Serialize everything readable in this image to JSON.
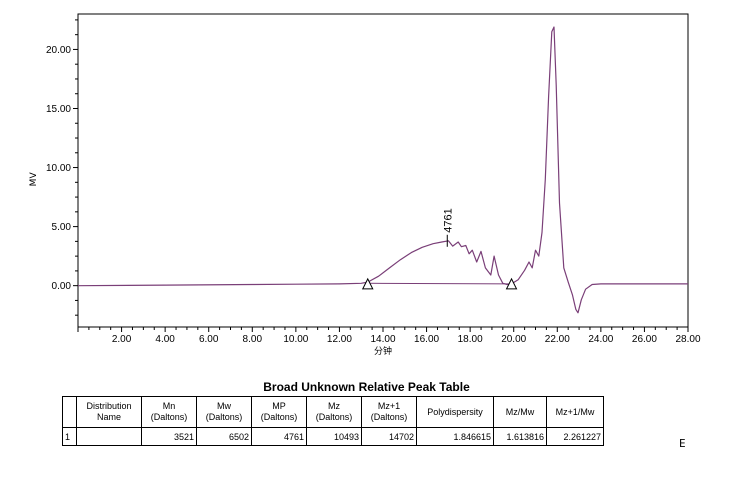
{
  "chart_data": {
    "type": "line",
    "title": "",
    "xlabel": "分钟",
    "ylabel": "MV",
    "xlim": [
      0,
      28
    ],
    "ylim": [
      -3.5,
      23
    ],
    "x_ticks": [
      2,
      4,
      6,
      8,
      10,
      12,
      14,
      16,
      18,
      20,
      22,
      24,
      26,
      28
    ],
    "x_tick_labels": [
      "2.00",
      "4.00",
      "6.00",
      "8.00",
      "10.00",
      "12.00",
      "14.00",
      "16.00",
      "18.00",
      "20.00",
      "22.00",
      "24.00",
      "26.00",
      "28.00"
    ],
    "y_ticks": [
      0,
      5,
      10,
      15,
      20
    ],
    "y_tick_labels": [
      "0.00",
      "5.00",
      "10.00",
      "15.00",
      "20.00"
    ],
    "grid": false,
    "series": [
      {
        "color": "#7a3f78",
        "x": [
          0,
          4,
          8,
          10,
          12,
          13,
          13.3,
          13.8,
          14.3,
          14.8,
          15.3,
          15.8,
          16.3,
          16.7,
          17.0,
          17.2,
          17.45,
          17.6,
          17.8,
          17.95,
          18.1,
          18.3,
          18.5,
          18.7,
          18.95,
          19.1,
          19.3,
          19.5,
          19.7,
          19.9,
          20.2,
          20.5,
          20.7,
          20.85,
          21.0,
          21.15,
          21.3,
          21.45,
          21.6,
          21.75,
          21.85,
          21.95,
          22.1,
          22.3,
          22.5,
          22.7,
          22.85,
          22.95,
          23.1,
          23.3,
          23.6,
          24,
          26,
          28
        ],
        "y": [
          0,
          0.05,
          0.1,
          0.12,
          0.15,
          0.2,
          0.3,
          0.8,
          1.5,
          2.2,
          2.8,
          3.25,
          3.55,
          3.7,
          3.8,
          3.35,
          3.7,
          3.3,
          3.4,
          2.7,
          3.0,
          2.0,
          2.9,
          1.5,
          0.9,
          2.5,
          0.9,
          0.2,
          0.1,
          0.15,
          0.5,
          1.3,
          2.0,
          1.5,
          3.0,
          2.5,
          4.5,
          9.0,
          16.0,
          21.5,
          21.9,
          17.0,
          7.0,
          1.5,
          0.3,
          -0.8,
          -2.0,
          -2.3,
          -1.2,
          -0.3,
          0.1,
          0.15,
          0.15,
          0.15
        ]
      }
    ],
    "baseline_markers": [
      13.3,
      19.9
    ],
    "peak_annotation": {
      "label": "4761",
      "x": 16.95,
      "y": 3.8
    }
  },
  "peak_table": {
    "title": "Broad Unknown Relative Peak Table",
    "headers": [
      "",
      "Distribution Name",
      "Mn (Daltons)",
      "Mw (Daltons)",
      "MP (Daltons)",
      "Mz (Daltons)",
      "Mz+1 (Daltons)",
      "Polydispersity",
      "Mz/Mw",
      "Mz+1/Mw"
    ],
    "rows": [
      [
        "1",
        "",
        "3521",
        "6502",
        "4761",
        "10493",
        "14702",
        "1.846615",
        "1.613816",
        "2.261227"
      ]
    ]
  },
  "page_mark": "E"
}
